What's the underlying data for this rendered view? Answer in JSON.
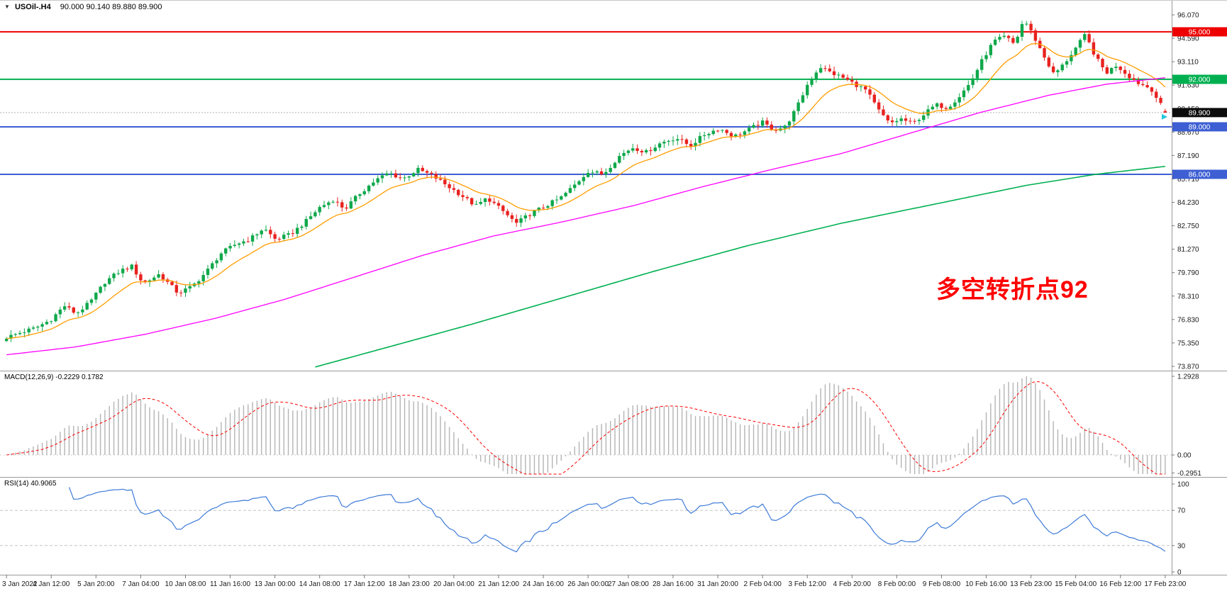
{
  "title": {
    "collapse_icon": "▼",
    "symbol": "USOil-.H4",
    "ohlc": "90.000 90.140 89.880 89.900"
  },
  "annotation": {
    "text": "多空转折点92",
    "color": "#ff0000"
  },
  "macd": {
    "label": "MACD(12,26,9) -0.2229 0.1782"
  },
  "rsi": {
    "label": "RSI(14) 40.9065"
  },
  "colors": {
    "up": "#0fa84b",
    "down": "#e8221f",
    "ma_fast": "#ff9d00",
    "ma_mid": "#ff00ff",
    "ma_slow": "#00b050",
    "macd_hist": "#b4b4b4",
    "macd_signal": "#ff0000",
    "rsi_line": "#3e7bd8",
    "axis_text": "#1a1a1a"
  },
  "chart_data": {
    "type": "candlestick",
    "symbol": "USOil-.H4",
    "timeframe": "H4",
    "current_ohlc": {
      "open": "90.000",
      "high": "90.140",
      "low": "89.880",
      "close": "89.900"
    },
    "price_axis_labels": [
      "96.070",
      "94.590",
      "93.110",
      "91.630",
      "90.150",
      "88.670",
      "87.190",
      "85.710",
      "84.230",
      "82.750",
      "81.270",
      "79.790",
      "78.310",
      "76.830",
      "75.350",
      "73.870"
    ],
    "h_lines": [
      {
        "label": "95.000",
        "price": 95.0,
        "color": "#ee0000"
      },
      {
        "label": "92.000",
        "price": 92.0,
        "color": "#00b050"
      },
      {
        "label": "89.000",
        "price": 89.0,
        "color": "#3d5fd3"
      },
      {
        "label": "86.000",
        "price": 86.0,
        "color": "#3d5fd3"
      }
    ],
    "current_price": {
      "label": "89.900",
      "value": 89.9
    },
    "candles": {
      "count": 260,
      "last_candle": [
        90.0,
        90.14,
        89.88,
        89.9
      ],
      "close_anchors": [
        [
          0.0,
          75.7
        ],
        [
          0.012,
          76.0
        ],
        [
          0.025,
          76.3
        ],
        [
          0.038,
          76.8
        ],
        [
          0.05,
          77.7
        ],
        [
          0.06,
          77.2
        ],
        [
          0.072,
          77.9
        ],
        [
          0.085,
          79.2
        ],
        [
          0.098,
          79.9
        ],
        [
          0.108,
          80.2
        ],
        [
          0.118,
          79.1
        ],
        [
          0.132,
          79.7
        ],
        [
          0.148,
          78.5
        ],
        [
          0.16,
          78.9
        ],
        [
          0.172,
          79.8
        ],
        [
          0.185,
          81.0
        ],
        [
          0.198,
          81.6
        ],
        [
          0.21,
          81.9
        ],
        [
          0.222,
          82.6
        ],
        [
          0.232,
          81.9
        ],
        [
          0.245,
          82.2
        ],
        [
          0.258,
          83.0
        ],
        [
          0.27,
          83.9
        ],
        [
          0.282,
          84.4
        ],
        [
          0.292,
          83.8
        ],
        [
          0.305,
          84.8
        ],
        [
          0.318,
          85.6
        ],
        [
          0.33,
          86.1
        ],
        [
          0.342,
          85.7
        ],
        [
          0.355,
          86.3
        ],
        [
          0.368,
          85.9
        ],
        [
          0.38,
          85.3
        ],
        [
          0.392,
          84.7
        ],
        [
          0.405,
          84.0
        ],
        [
          0.415,
          84.5
        ],
        [
          0.428,
          83.7
        ],
        [
          0.44,
          82.9
        ],
        [
          0.452,
          83.5
        ],
        [
          0.465,
          84.0
        ],
        [
          0.478,
          84.5
        ],
        [
          0.49,
          85.3
        ],
        [
          0.502,
          86.2
        ],
        [
          0.515,
          86.0
        ],
        [
          0.528,
          87.1
        ],
        [
          0.54,
          87.7
        ],
        [
          0.552,
          87.4
        ],
        [
          0.565,
          88.0
        ],
        [
          0.578,
          88.3
        ],
        [
          0.59,
          87.8
        ],
        [
          0.602,
          88.5
        ],
        [
          0.615,
          88.9
        ],
        [
          0.628,
          88.4
        ],
        [
          0.64,
          88.8
        ],
        [
          0.652,
          89.3
        ],
        [
          0.662,
          88.8
        ],
        [
          0.672,
          89.0
        ],
        [
          0.682,
          90.2
        ],
        [
          0.692,
          91.8
        ],
        [
          0.702,
          92.8
        ],
        [
          0.712,
          92.4
        ],
        [
          0.722,
          92.1
        ],
        [
          0.732,
          91.7
        ],
        [
          0.742,
          91.3
        ],
        [
          0.752,
          90.1
        ],
        [
          0.762,
          89.2
        ],
        [
          0.772,
          89.5
        ],
        [
          0.782,
          89.2
        ],
        [
          0.792,
          89.8
        ],
        [
          0.802,
          90.4
        ],
        [
          0.812,
          90.2
        ],
        [
          0.822,
          90.9
        ],
        [
          0.832,
          91.8
        ],
        [
          0.842,
          93.2
        ],
        [
          0.852,
          94.4
        ],
        [
          0.862,
          94.7
        ],
        [
          0.87,
          94.2
        ],
        [
          0.878,
          95.8
        ],
        [
          0.886,
          94.8
        ],
        [
          0.895,
          93.5
        ],
        [
          0.904,
          92.3
        ],
        [
          0.913,
          93.0
        ],
        [
          0.922,
          93.9
        ],
        [
          0.931,
          94.8
        ],
        [
          0.94,
          93.4
        ],
        [
          0.949,
          92.4
        ],
        [
          0.958,
          92.9
        ],
        [
          0.967,
          92.3
        ],
        [
          0.976,
          91.8
        ],
        [
          0.988,
          91.4
        ],
        [
          1.0,
          89.9
        ]
      ]
    },
    "moving_averages": {
      "orange_ema_period": 13,
      "magenta_anchors": [
        [
          0.0,
          74.6
        ],
        [
          0.06,
          75.1
        ],
        [
          0.12,
          75.9
        ],
        [
          0.18,
          76.9
        ],
        [
          0.24,
          78.1
        ],
        [
          0.3,
          79.5
        ],
        [
          0.36,
          80.9
        ],
        [
          0.42,
          82.1
        ],
        [
          0.48,
          83.0
        ],
        [
          0.54,
          84.0
        ],
        [
          0.6,
          85.2
        ],
        [
          0.66,
          86.3
        ],
        [
          0.72,
          87.3
        ],
        [
          0.78,
          88.6
        ],
        [
          0.84,
          89.9
        ],
        [
          0.9,
          91.0
        ],
        [
          0.95,
          91.7
        ],
        [
          1.0,
          92.1
        ]
      ],
      "green_anchors": [
        [
          0.265,
          73.8
        ],
        [
          0.32,
          74.9
        ],
        [
          0.4,
          76.5
        ],
        [
          0.48,
          78.2
        ],
        [
          0.56,
          79.9
        ],
        [
          0.64,
          81.5
        ],
        [
          0.72,
          82.9
        ],
        [
          0.8,
          84.1
        ],
        [
          0.88,
          85.3
        ],
        [
          0.94,
          86.0
        ],
        [
          1.0,
          86.5
        ]
      ]
    },
    "macd": {
      "params": [
        12,
        26,
        9
      ],
      "value": -0.2229,
      "signal_value": 0.1782,
      "scale_max": 1.2928,
      "axis": [
        [
          "1.2928",
          1.2928
        ],
        [
          "0.00",
          0
        ],
        [
          "-0.2951",
          -0.2951
        ]
      ]
    },
    "rsi": {
      "period": 14,
      "value": 40.9065,
      "levels": [
        70,
        30
      ],
      "axis": [
        [
          "100",
          100
        ],
        [
          "70",
          70
        ],
        [
          "30",
          30
        ],
        [
          "0",
          0
        ]
      ]
    },
    "time_labels": [
      "3 Jan 2022",
      "4 Jan 12:00",
      "5 Jan 20:00",
      "7 Jan 04:00",
      "10 Jan 08:00",
      "11 Jan 16:00",
      "13 Jan 00:00",
      "14 Jan 08:00",
      "17 Jan 12:00",
      "18 Jan 23:00",
      "20 Jan 04:00",
      "21 Jan 12:00",
      "24 Jan 16:00",
      "26 Jan 00:00",
      "27 Jan 08:00",
      "28 Jan 16:00",
      "31 Jan 20:00",
      "2 Feb 04:00",
      "3 Feb 12:00",
      "4 Feb 20:00",
      "8 Feb 00:00",
      "9 Feb 08:00",
      "10 Feb 16:00",
      "13 Feb 23:00",
      "15 Feb 04:00",
      "16 Feb 12:00",
      "17 Feb 23:00"
    ]
  }
}
